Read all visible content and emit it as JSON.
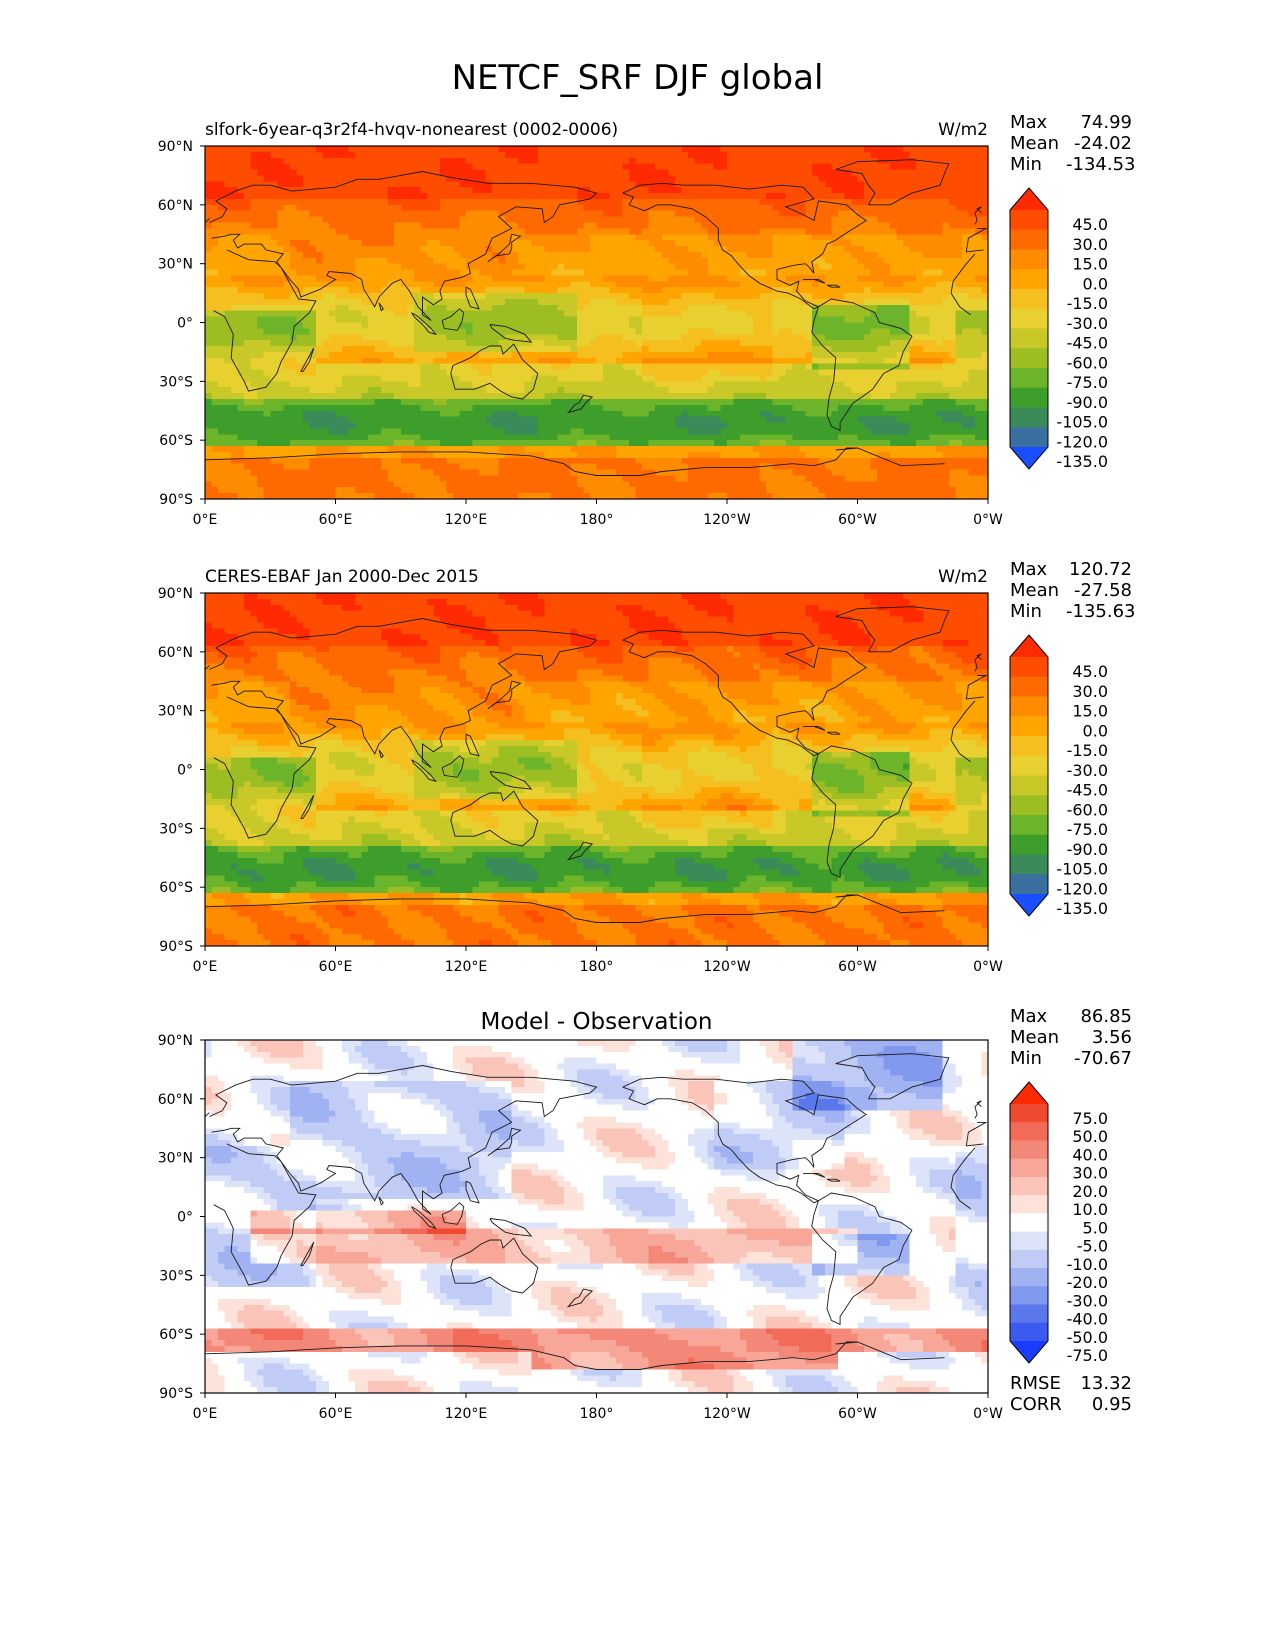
{
  "figure_title": "NETCF_SRF DJF global",
  "chart_data": [
    {
      "type": "heatmap",
      "title": "slfork-6year-q3r2f4-hvqv-nonearest (0002-0006)",
      "units": "W/m2",
      "stats": [
        {
          "label": "Max",
          "value": "74.99"
        },
        {
          "label": "Mean",
          "value": "-24.02"
        },
        {
          "label": "Min",
          "value": "-134.53"
        }
      ],
      "colorbar": {
        "labels": [
          "45.0",
          "30.0",
          "15.0",
          "0.0",
          "-15.0",
          "-30.0",
          "-45.0",
          "-60.0",
          "-75.0",
          "-90.0",
          "-105.0",
          "-120.0",
          "-135.0"
        ],
        "colors": [
          "#ff2a00",
          "#ff4d00",
          "#ff6a00",
          "#ff8c00",
          "#ffa400",
          "#f5bf20",
          "#e8d030",
          "#c8c828",
          "#9cbe22",
          "#6cb42a",
          "#3e9e2c",
          "#3a8a5a",
          "#3a6fa0",
          "#1a4fff"
        ]
      },
      "x_ticks": [
        "0°E",
        "60°E",
        "120°E",
        "180°",
        "120°W",
        "60°W",
        "0°W"
      ],
      "y_ticks": [
        "90°N",
        "60°N",
        "30°N",
        "0°",
        "30°S",
        "60°S",
        "90°S"
      ],
      "xlim": [
        0,
        360
      ],
      "ylim": [
        -90,
        90
      ]
    },
    {
      "type": "heatmap",
      "title": "CERES-EBAF Jan 2000-Dec 2015",
      "units": "W/m2",
      "stats": [
        {
          "label": "Max",
          "value": "120.72"
        },
        {
          "label": "Mean",
          "value": "-27.58"
        },
        {
          "label": "Min",
          "value": "-135.63"
        }
      ],
      "colorbar": {
        "labels": [
          "45.0",
          "30.0",
          "15.0",
          "0.0",
          "-15.0",
          "-30.0",
          "-45.0",
          "-60.0",
          "-75.0",
          "-90.0",
          "-105.0",
          "-120.0",
          "-135.0"
        ],
        "colors": [
          "#ff2a00",
          "#ff4d00",
          "#ff6a00",
          "#ff8c00",
          "#ffa400",
          "#f5bf20",
          "#e8d030",
          "#c8c828",
          "#9cbe22",
          "#6cb42a",
          "#3e9e2c",
          "#3a8a5a",
          "#3a6fa0",
          "#1a4fff"
        ]
      },
      "x_ticks": [
        "0°E",
        "60°E",
        "120°E",
        "180°",
        "120°W",
        "60°W",
        "0°W"
      ],
      "y_ticks": [
        "90°N",
        "60°N",
        "30°N",
        "0°",
        "30°S",
        "60°S",
        "90°S"
      ],
      "xlim": [
        0,
        360
      ],
      "ylim": [
        -90,
        90
      ]
    },
    {
      "type": "heatmap",
      "title": "Model - Observation",
      "units": "",
      "stats": [
        {
          "label": "Max",
          "value": "86.85"
        },
        {
          "label": "Mean",
          "value": "3.56"
        },
        {
          "label": "Min",
          "value": "-70.67"
        }
      ],
      "extra_stats": [
        {
          "label": "RMSE",
          "value": "13.32"
        },
        {
          "label": "CORR",
          "value": "0.95"
        }
      ],
      "colorbar": {
        "labels": [
          "75.0",
          "50.0",
          "40.0",
          "30.0",
          "20.0",
          "10.0",
          "5.0",
          "-5.0",
          "-10.0",
          "-20.0",
          "-30.0",
          "-40.0",
          "-50.0",
          "-75.0"
        ],
        "colors": [
          "#ff2a00",
          "#f04a30",
          "#f26a58",
          "#f48878",
          "#f7a698",
          "#fac4b8",
          "#fde2da",
          "#ffffff",
          "#dde4fa",
          "#c0ccf6",
          "#a0b2f2",
          "#8098ee",
          "#5a78ec",
          "#3a5af0",
          "#1a3cff"
        ]
      },
      "x_ticks": [
        "0°E",
        "60°E",
        "120°E",
        "180°",
        "120°W",
        "60°W",
        "0°W"
      ],
      "y_ticks": [
        "90°N",
        "60°N",
        "30°N",
        "0°",
        "30°S",
        "60°S",
        "90°S"
      ],
      "xlim": [
        0,
        360
      ],
      "ylim": [
        -90,
        90
      ]
    }
  ]
}
